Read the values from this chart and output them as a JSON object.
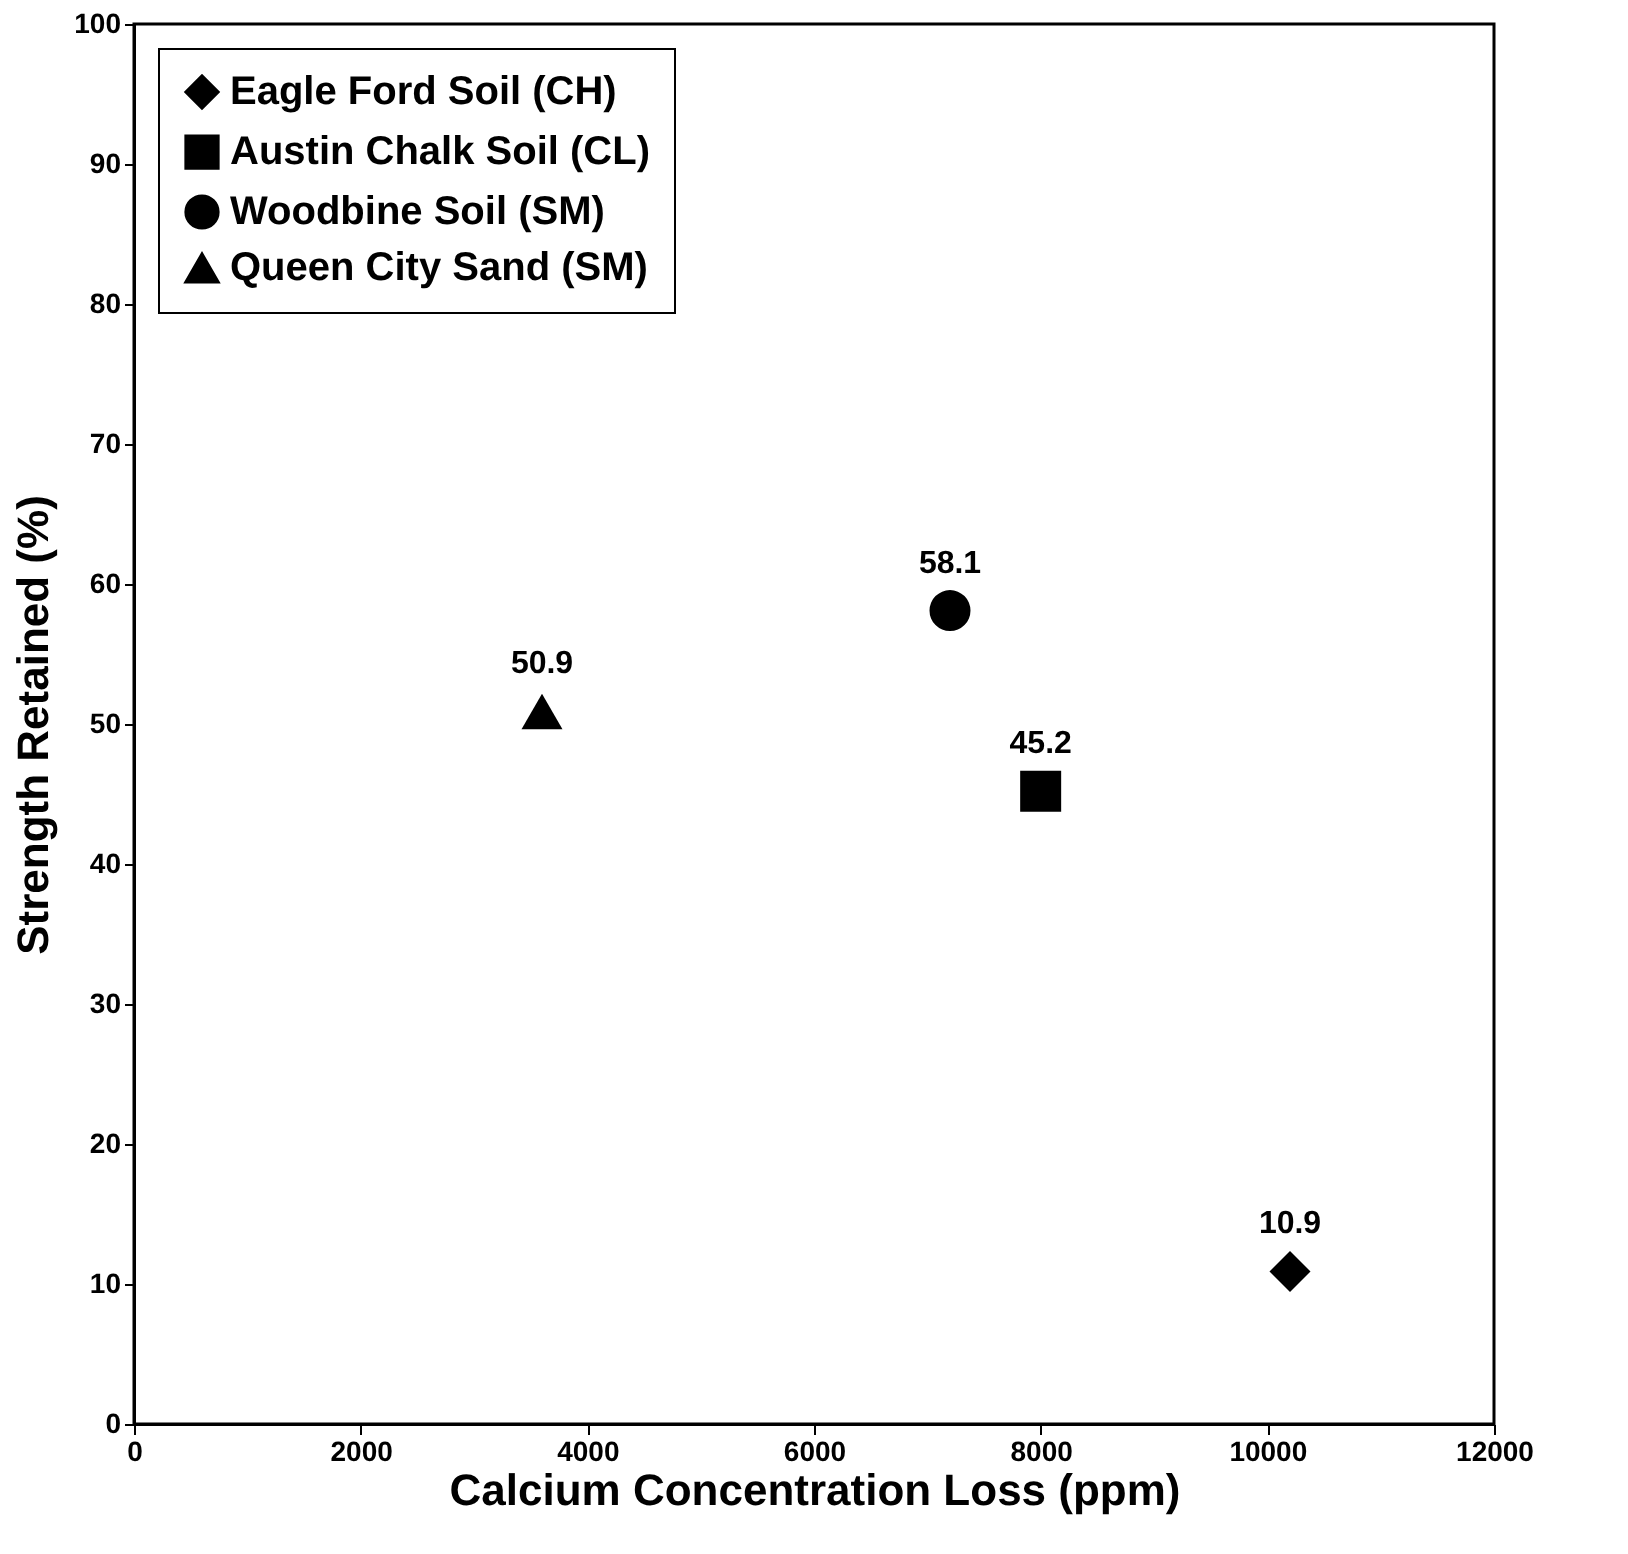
{
  "chart_data": {
    "type": "scatter",
    "xlabel": "Calcium Concentration Loss (ppm)",
    "ylabel": "Strength Retained (%)",
    "xlim": [
      0,
      12000
    ],
    "xticks": [
      0,
      2000,
      4000,
      6000,
      8000,
      10000,
      12000
    ],
    "ylim": [
      0,
      100
    ],
    "yticks": [
      0,
      10,
      20,
      30,
      40,
      50,
      60,
      70,
      80,
      90,
      100
    ],
    "grid": false,
    "legend": "top left",
    "data_labels": true,
    "series": [
      {
        "name": "Eagle Ford Soil (CH)",
        "color": "#000000",
        "marker": "diamond",
        "x": [
          10200
        ],
        "values": [
          10.9
        ]
      },
      {
        "name": "Austin Chalk Soil (CL)",
        "color": "#000000",
        "marker": "square",
        "x": [
          8000
        ],
        "values": [
          45.2
        ]
      },
      {
        "name": "Woodbine Soil (SM)",
        "color": "#000000",
        "marker": "circle",
        "x": [
          7200
        ],
        "values": [
          58.1
        ]
      },
      {
        "name": "Queen City Sand (SM)",
        "color": "#000000",
        "marker": "triangle",
        "x": [
          3600
        ],
        "values": [
          50.9
        ]
      }
    ]
  }
}
